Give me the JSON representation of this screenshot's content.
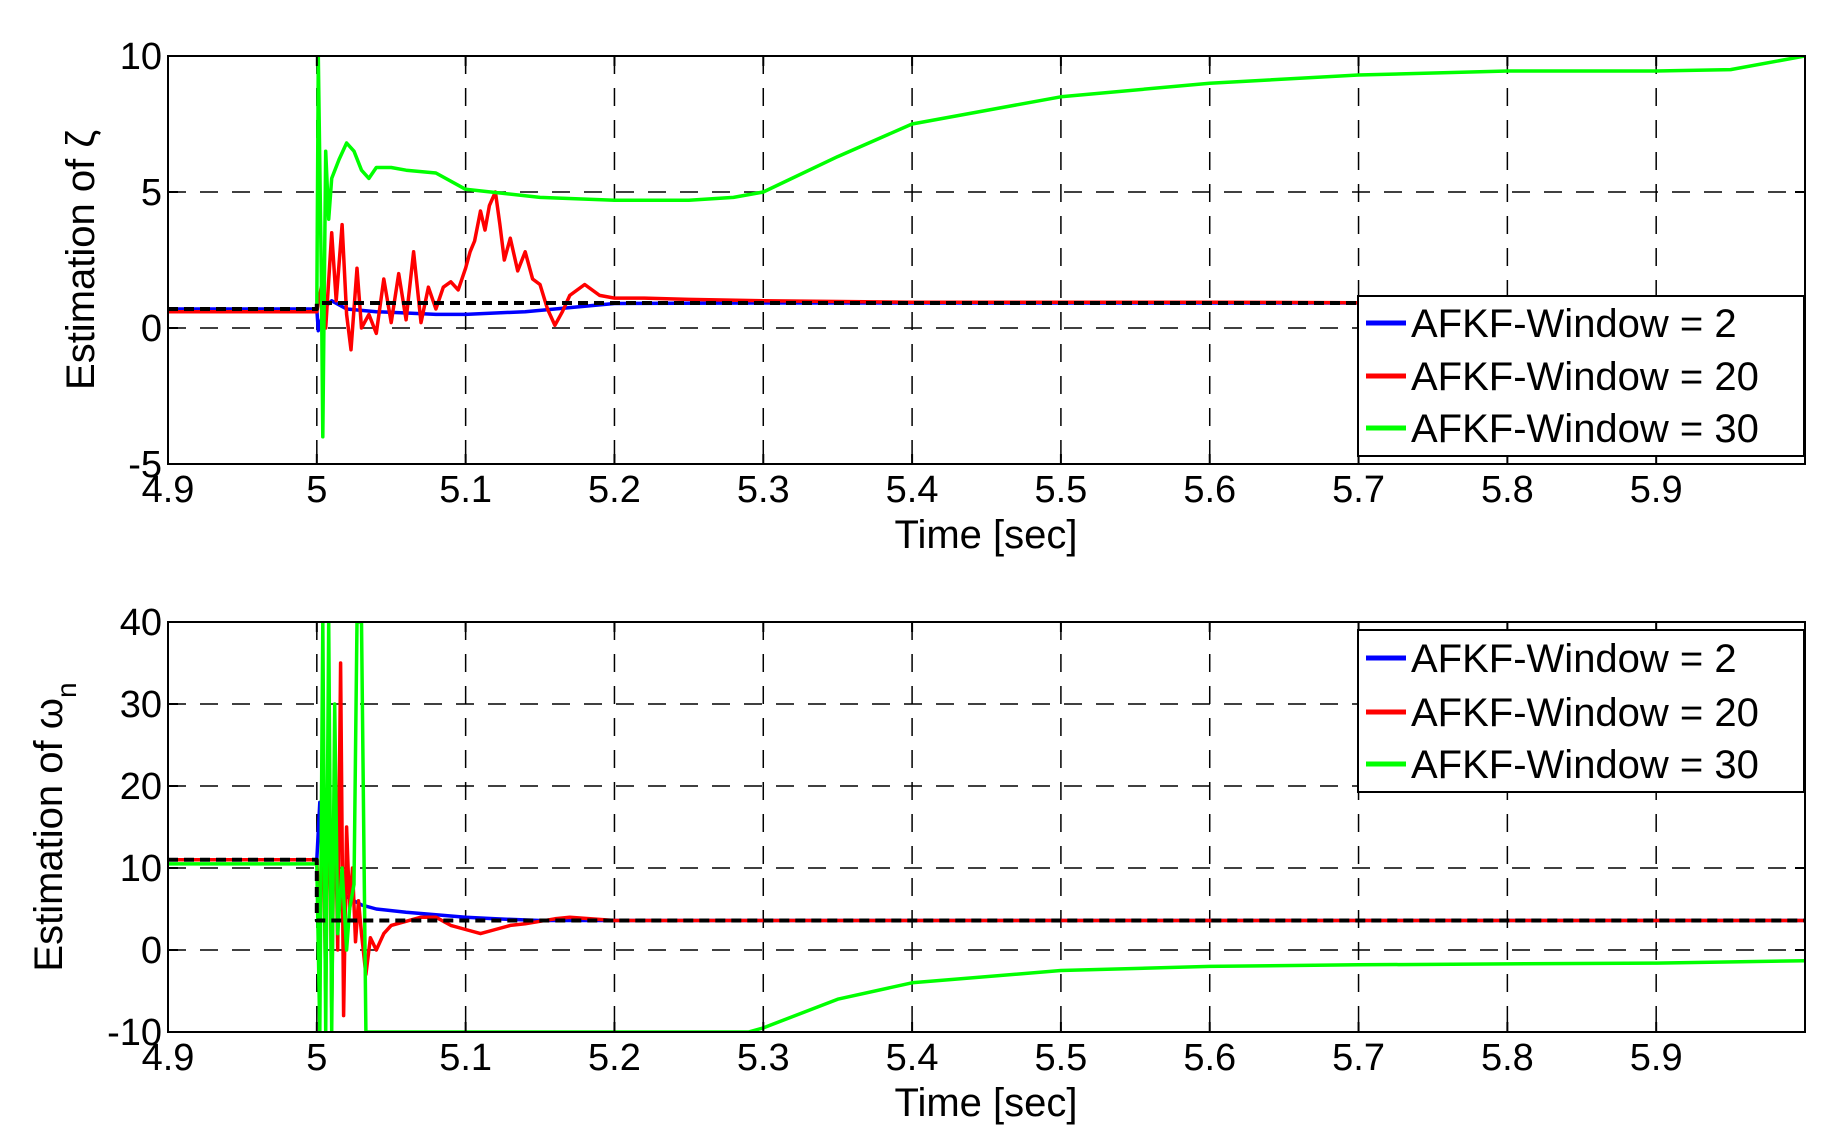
{
  "colors": {
    "blue": "#0000ff",
    "red": "#ff0000",
    "green": "#00ff00",
    "true_value": "#000000",
    "grid": "#000000"
  },
  "chart_data": [
    {
      "type": "line",
      "title": "",
      "xlabel": "Time [sec]",
      "ylabel": "Estimation of ζ",
      "xlim": [
        4.9,
        6.0
      ],
      "ylim": [
        -5,
        10
      ],
      "x_ticks": [
        4.9,
        5.0,
        5.1,
        5.2,
        5.3,
        5.4,
        5.5,
        5.6,
        5.7,
        5.8,
        5.9
      ],
      "x_tick_labels": [
        "4.9",
        "5",
        "5.1",
        "5.2",
        "5.3",
        "5.4",
        "5.5",
        "5.6",
        "5.7",
        "5.8",
        "5.9"
      ],
      "y_ticks": [
        -5,
        0,
        5,
        10
      ],
      "y_tick_labels": [
        "-5",
        "0",
        "5",
        "10"
      ],
      "grid": true,
      "legend_position": "bottom-right",
      "legend": [
        "AFKF-Window = 2",
        "AFKF-Window = 20",
        "AFKF-Window = 30"
      ],
      "series": [
        {
          "name": "AFKF-Window = 2",
          "color": "#0000ff",
          "x": [
            4.9,
            5.0,
            5.001,
            5.003,
            5.006,
            5.01,
            5.02,
            5.04,
            5.06,
            5.08,
            5.1,
            5.12,
            5.14,
            5.16,
            5.18,
            5.2,
            5.3,
            5.4,
            5.5,
            5.6,
            5.7,
            6.0
          ],
          "y": [
            0.7,
            0.7,
            -0.1,
            0.3,
            0.8,
            1.0,
            0.7,
            0.6,
            0.55,
            0.5,
            0.5,
            0.55,
            0.6,
            0.7,
            0.8,
            0.9,
            0.92,
            0.92,
            0.92,
            0.92,
            0.92,
            0.92
          ]
        },
        {
          "name": "AFKF-Window = 20",
          "color": "#ff0000",
          "x": [
            4.9,
            5.0,
            5.003,
            5.006,
            5.01,
            5.013,
            5.017,
            5.02,
            5.023,
            5.027,
            5.03,
            5.035,
            5.04,
            5.045,
            5.05,
            5.055,
            5.06,
            5.065,
            5.07,
            5.075,
            5.08,
            5.085,
            5.09,
            5.095,
            5.1,
            5.103,
            5.106,
            5.11,
            5.113,
            5.116,
            5.12,
            5.123,
            5.126,
            5.13,
            5.135,
            5.14,
            5.145,
            5.15,
            5.155,
            5.16,
            5.165,
            5.17,
            5.18,
            5.19,
            5.2,
            5.22,
            5.25,
            5.3,
            5.4,
            5.5,
            5.6,
            5.7,
            6.0
          ],
          "y": [
            0.6,
            0.6,
            1.5,
            0.0,
            3.5,
            1.0,
            3.8,
            0.5,
            -0.8,
            2.2,
            0.0,
            0.5,
            -0.2,
            1.8,
            0.2,
            2.0,
            0.3,
            2.8,
            0.2,
            1.5,
            0.7,
            1.5,
            1.7,
            1.4,
            2.2,
            2.8,
            3.2,
            4.3,
            3.6,
            4.5,
            5.0,
            3.8,
            2.5,
            3.3,
            2.1,
            2.8,
            1.8,
            1.6,
            0.7,
            0.1,
            0.6,
            1.2,
            1.6,
            1.2,
            1.1,
            1.1,
            1.05,
            1.0,
            0.95,
            0.95,
            0.95,
            0.93,
            0.93
          ]
        },
        {
          "name": "AFKF-Window = 30",
          "color": "#00ff00",
          "x": [
            5.0,
            5.001,
            5.002,
            5.003,
            5.004,
            5.006,
            5.008,
            5.01,
            5.015,
            5.02,
            5.025,
            5.03,
            5.035,
            5.04,
            5.05,
            5.06,
            5.08,
            5.1,
            5.15,
            5.2,
            5.25,
            5.28,
            5.3,
            5.35,
            5.4,
            5.5,
            5.6,
            5.7,
            5.8,
            5.9,
            5.95,
            6.0
          ],
          "y": [
            0.7,
            10.0,
            6.0,
            2.0,
            -4.0,
            6.5,
            4.0,
            5.5,
            6.2,
            6.8,
            6.5,
            5.8,
            5.5,
            5.9,
            5.9,
            5.8,
            5.7,
            5.1,
            4.8,
            4.7,
            4.7,
            4.8,
            5.0,
            6.3,
            7.5,
            8.5,
            9.0,
            9.3,
            9.45,
            9.45,
            9.5,
            10.0
          ]
        },
        {
          "color": "#000000",
          "style": "dashed",
          "x": [
            4.9,
            5.0,
            5.0,
            6.0
          ],
          "y": [
            0.7,
            0.7,
            0.92,
            0.92
          ]
        }
      ]
    },
    {
      "type": "line",
      "title": "",
      "xlabel": "Time [sec]",
      "ylabel": "Estimation of ωn",
      "ylabel_main": "Estimation of ω",
      "ylabel_sub": "n",
      "xlim": [
        4.9,
        6.0
      ],
      "ylim": [
        -10,
        40
      ],
      "x_ticks": [
        4.9,
        5.0,
        5.1,
        5.2,
        5.3,
        5.4,
        5.5,
        5.6,
        5.7,
        5.8,
        5.9
      ],
      "x_tick_labels": [
        "4.9",
        "5",
        "5.1",
        "5.2",
        "5.3",
        "5.4",
        "5.5",
        "5.6",
        "5.7",
        "5.8",
        "5.9"
      ],
      "y_ticks": [
        -10,
        0,
        10,
        20,
        30,
        40
      ],
      "y_tick_labels": [
        "-10",
        "0",
        "10",
        "20",
        "30",
        "40"
      ],
      "grid": true,
      "legend_position": "top-right",
      "legend": [
        "AFKF-Window = 2",
        "AFKF-Window = 20",
        "AFKF-Window = 30"
      ],
      "series": [
        {
          "name": "AFKF-Window = 2",
          "color": "#0000ff",
          "x": [
            4.9,
            5.0,
            5.002,
            5.004,
            5.006,
            5.01,
            5.015,
            5.02,
            5.025,
            5.03,
            5.04,
            5.06,
            5.08,
            5.1,
            5.12,
            5.15,
            5.2,
            5.3,
            5.6,
            6.0
          ],
          "y": [
            11.0,
            11.0,
            18.0,
            14.0,
            12.0,
            9.0,
            7.0,
            6.5,
            6.0,
            5.5,
            5.0,
            4.6,
            4.3,
            4.0,
            3.8,
            3.6,
            3.6,
            3.6,
            3.6,
            3.6
          ]
        },
        {
          "name": "AFKF-Window = 20",
          "color": "#ff0000",
          "x": [
            4.9,
            5.0,
            5.002,
            5.004,
            5.006,
            5.008,
            5.01,
            5.012,
            5.014,
            5.016,
            5.018,
            5.02,
            5.022,
            5.024,
            5.026,
            5.028,
            5.03,
            5.033,
            5.036,
            5.04,
            5.045,
            5.05,
            5.06,
            5.07,
            5.08,
            5.09,
            5.1,
            5.11,
            5.12,
            5.13,
            5.14,
            5.15,
            5.16,
            5.17,
            5.2,
            5.3,
            5.6,
            6.0
          ],
          "y": [
            11.0,
            11.0,
            2.0,
            20.0,
            -5.0,
            28.0,
            -7.0,
            22.0,
            0.0,
            35.0,
            -8.0,
            15.0,
            5.0,
            10.0,
            1.0,
            6.0,
            2.0,
            -3.0,
            1.5,
            0.0,
            2.0,
            3.0,
            3.5,
            4.0,
            4.0,
            3.0,
            2.5,
            2.0,
            2.5,
            3.0,
            3.2,
            3.5,
            3.8,
            4.0,
            3.6,
            3.6,
            3.6,
            3.6
          ]
        },
        {
          "name": "AFKF-Window = 30",
          "color": "#00ff00",
          "x": [
            4.9,
            5.0,
            5.002,
            5.004,
            5.006,
            5.008,
            5.01,
            5.012,
            5.014,
            5.017,
            5.02,
            5.022,
            5.025,
            5.027,
            5.03,
            5.033,
            5.035,
            5.29,
            5.3,
            5.35,
            5.4,
            5.5,
            5.6,
            5.7,
            5.8,
            5.9,
            6.0
          ],
          "y": [
            10.5,
            10.5,
            -10.0,
            40.0,
            -10.0,
            40.0,
            -10.0,
            30.0,
            2.0,
            10.0,
            0.0,
            5.0,
            8.0,
            40.0,
            40.0,
            -10.0,
            -10.0,
            -10.0,
            -9.5,
            -6.0,
            -4.0,
            -2.5,
            -2.0,
            -1.8,
            -1.7,
            -1.6,
            -1.3
          ]
        },
        {
          "color": "#000000",
          "style": "dashed",
          "x": [
            4.9,
            5.0,
            5.0,
            6.0
          ],
          "y": [
            11.0,
            11.0,
            3.6,
            3.6
          ]
        }
      ]
    }
  ]
}
